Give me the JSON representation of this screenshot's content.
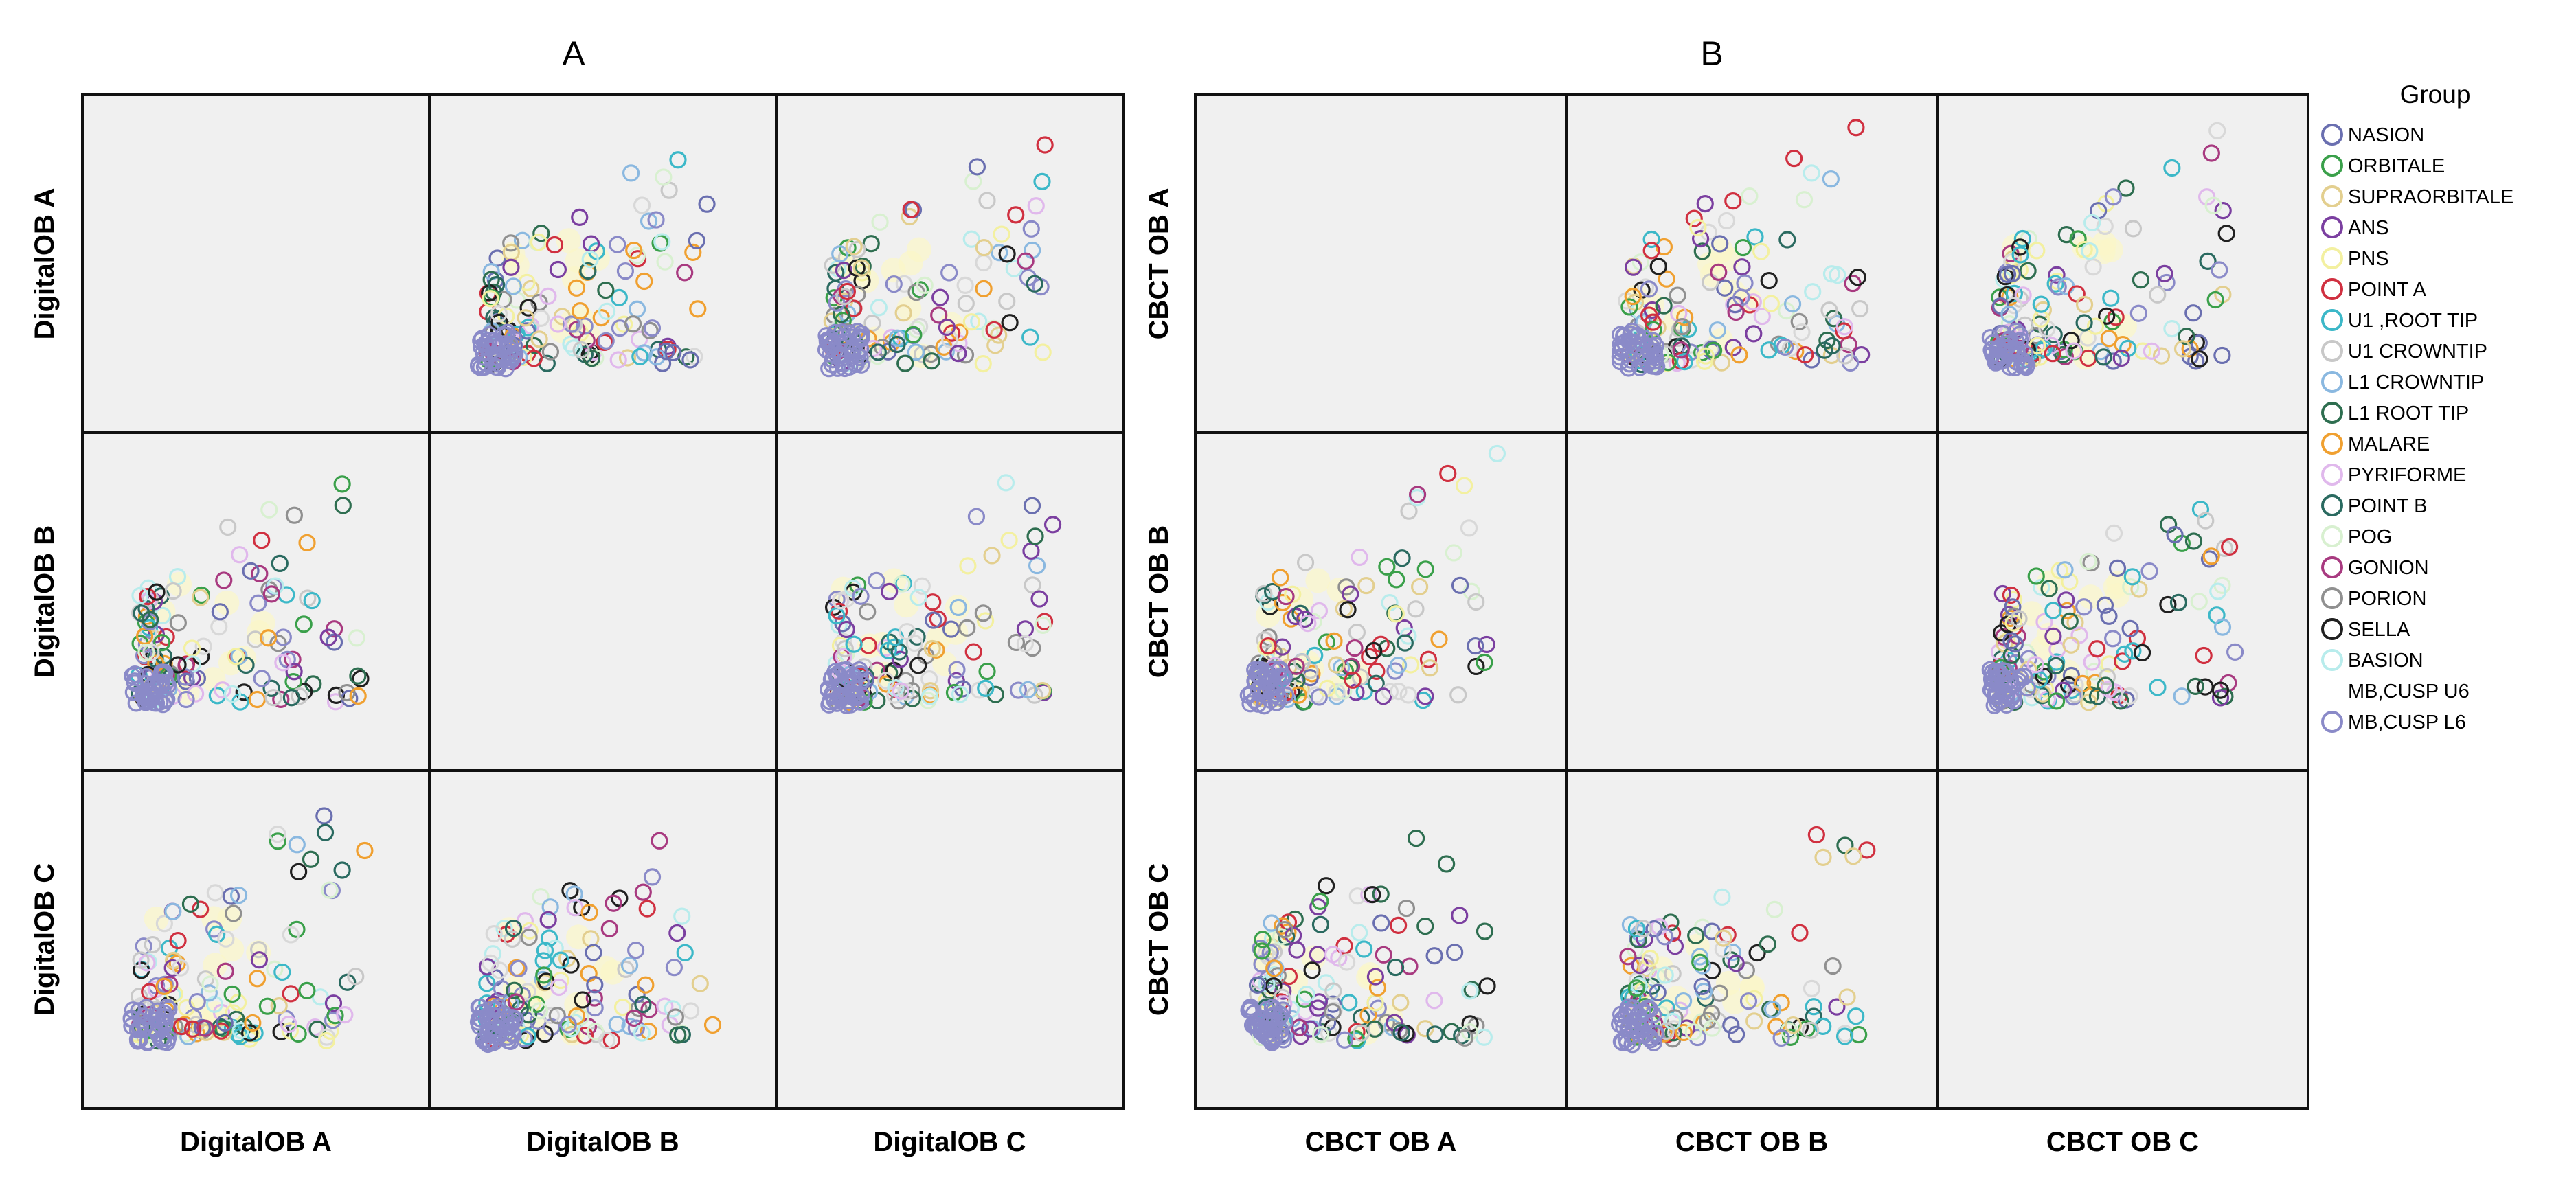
{
  "chart_data": [
    {
      "type": "scatter",
      "title": "A",
      "variables": [
        "DigitalOB A",
        "DigitalOB B",
        "DigitalOB C"
      ]
    },
    {
      "type": "scatter",
      "title": "B",
      "variables": [
        "CBCT OB A",
        "CBCT OB B",
        "CBCT OB C"
      ]
    }
  ],
  "legend": {
    "title": "Group",
    "items": [
      {
        "label": "NASION",
        "color": "#6a6fb0"
      },
      {
        "label": "ORBITALE",
        "color": "#3aa04a"
      },
      {
        "label": "SUPRAORBITALE",
        "color": "#e3cf8f"
      },
      {
        "label": "ANS",
        "color": "#7b3fa0"
      },
      {
        "label": "PNS",
        "color": "#f3f0a0"
      },
      {
        "label": "POINT A",
        "color": "#d03040"
      },
      {
        "label": "U1 ,ROOT TIP",
        "color": "#3cb8c8"
      },
      {
        "label": "U1 CROWNTIP",
        "color": "#c8c8c8"
      },
      {
        "label": "L1 CROWNTIP",
        "color": "#8ab8e0"
      },
      {
        "label": "L1 ROOT TIP",
        "color": "#2e6e50"
      },
      {
        "label": "MALARE",
        "color": "#f0a030"
      },
      {
        "label": "PYRIFORME",
        "color": "#e0b8ec"
      },
      {
        "label": "POINT B",
        "color": "#2a6a60"
      },
      {
        "label": "POG",
        "color": "#d8f0d0"
      },
      {
        "label": "GONION",
        "color": "#a83a80"
      },
      {
        "label": "PORION",
        "color": "#909090"
      },
      {
        "label": "SELLA",
        "color": "#202020"
      },
      {
        "label": "BASION",
        "color": "#b8ecec"
      },
      {
        "label": "MB,CUSP U6",
        "color": "#ffffff"
      },
      {
        "label": "MB,CUSP L6",
        "color": "#8a8ac8"
      }
    ]
  }
}
